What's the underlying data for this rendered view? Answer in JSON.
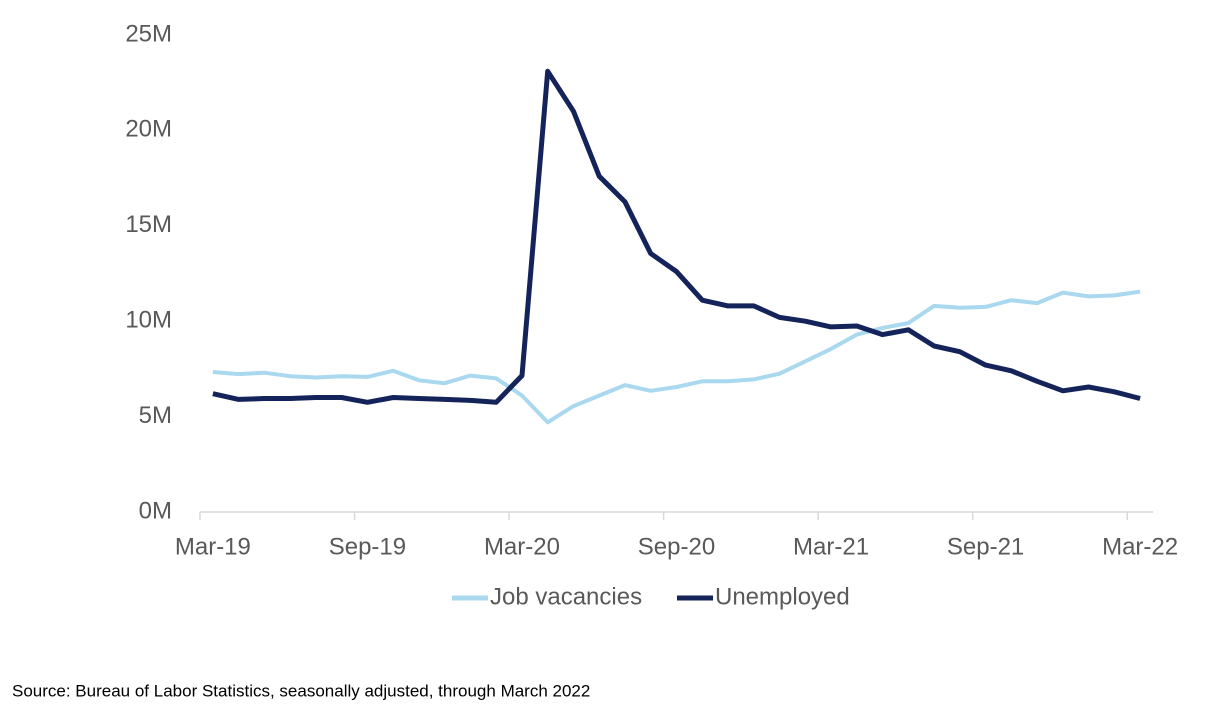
{
  "chart_data": {
    "type": "line",
    "categories": [
      "Mar-19",
      null,
      null,
      null,
      null,
      null,
      "Sep-19",
      null,
      null,
      null,
      null,
      null,
      "Mar-20",
      null,
      null,
      null,
      null,
      null,
      "Sep-20",
      null,
      null,
      null,
      null,
      null,
      "Mar-21",
      null,
      null,
      null,
      null,
      null,
      "Sep-21",
      null,
      null,
      null,
      null,
      null,
      "Mar-22"
    ],
    "series": [
      {
        "name": "Job vacancies",
        "color": "#a9d8ef",
        "values": [
          7.34,
          7.23,
          7.3,
          7.12,
          7.05,
          7.12,
          7.08,
          7.4,
          6.9,
          6.75,
          7.15,
          7.0,
          6.1,
          4.7,
          5.55,
          6.1,
          6.65,
          6.35,
          6.55,
          6.85,
          6.85,
          6.95,
          7.25,
          7.9,
          8.55,
          9.3,
          9.65,
          9.9,
          10.8,
          10.7,
          10.75,
          11.1,
          10.95,
          11.5,
          11.3,
          11.35,
          11.55
        ]
      },
      {
        "name": "Unemployed",
        "color": "#14245a",
        "values": [
          6.2,
          5.9,
          5.95,
          5.95,
          6.0,
          6.0,
          5.75,
          6.0,
          5.95,
          5.9,
          5.85,
          5.75,
          7.15,
          23.1,
          21.0,
          17.6,
          16.25,
          13.55,
          12.6,
          11.1,
          10.8,
          10.8,
          10.2,
          10.0,
          9.7,
          9.75,
          9.3,
          9.55,
          8.7,
          8.4,
          7.7,
          7.4,
          6.85,
          6.35,
          6.55,
          6.3,
          5.95
        ]
      }
    ],
    "ylim": [
      0,
      25
    ],
    "yticks": [
      {
        "value": 0,
        "label": "0M"
      },
      {
        "value": 5,
        "label": "5M"
      },
      {
        "value": 10,
        "label": "10M"
      },
      {
        "value": 15,
        "label": "15M"
      },
      {
        "value": 20,
        "label": "20M"
      },
      {
        "value": 25,
        "label": "25M"
      }
    ],
    "grid": false,
    "legend": "bottom",
    "source": "Source: Bureau of Labor Statistics, seasonally adjusted, through March 2022"
  }
}
